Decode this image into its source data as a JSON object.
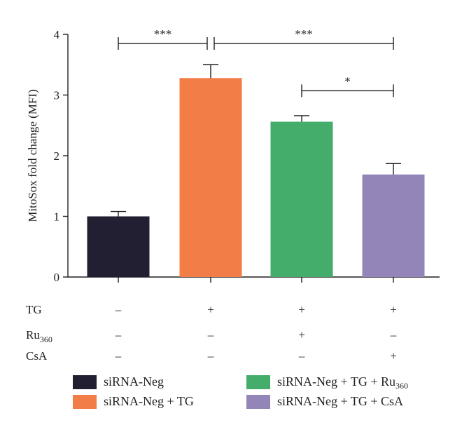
{
  "chart_data": {
    "type": "bar",
    "ylabel": "MitoSox fold change (MFI)",
    "xlabel": "",
    "title": "",
    "ylim": [
      0,
      4
    ],
    "yticks": [
      "0",
      "1",
      "2",
      "3",
      "4"
    ],
    "grid": false,
    "categories": [
      "siRNA-Neg",
      "siRNA-Neg + TG",
      "siRNA-Neg + TG + Ru360",
      "siRNA-Neg + TG + CsA"
    ],
    "values": [
      1.0,
      3.28,
      2.56,
      1.69
    ],
    "errors": [
      0.08,
      0.22,
      0.1,
      0.18
    ],
    "colors": [
      "#231f33",
      "#f27d47",
      "#44ad6b",
      "#9385b7"
    ],
    "significance": [
      {
        "from": 0,
        "to": 1,
        "label": "***",
        "y": 3.85
      },
      {
        "from": 1,
        "to": 3,
        "label": "***",
        "y": 3.85
      },
      {
        "from": 2,
        "to": 3,
        "label": "*",
        "y": 3.07
      }
    ],
    "treatments": [
      {
        "name": "TG",
        "name_sub": "",
        "marks": [
          "–",
          "+",
          "+",
          "+"
        ]
      },
      {
        "name": "Ru",
        "name_sub": "360",
        "marks": [
          "–",
          "–",
          "+",
          "–"
        ]
      },
      {
        "name": "CsA",
        "name_sub": "",
        "marks": [
          "–",
          "–",
          "–",
          "+"
        ]
      }
    ],
    "legend": {
      "placement": "bottom",
      "items": [
        {
          "text": "siRNA-Neg",
          "sub": "",
          "color": "#231f33"
        },
        {
          "text": "siRNA-Neg + TG",
          "sub": "",
          "color": "#f27d47"
        },
        {
          "text": "siRNA-Neg + TG + Ru",
          "sub": "360",
          "color": "#44ad6b"
        },
        {
          "text": "siRNA-Neg + TG + CsA",
          "sub": "",
          "color": "#9385b7"
        }
      ]
    }
  }
}
